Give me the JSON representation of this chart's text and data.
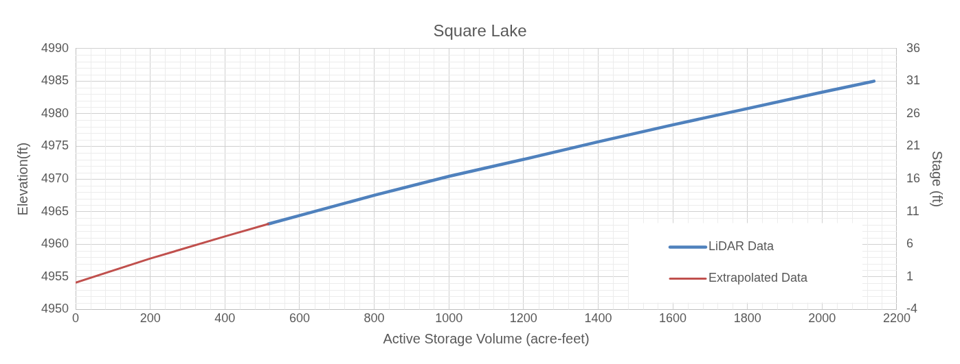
{
  "chart_data": {
    "type": "line",
    "title": "Square Lake",
    "xlabel": "Active Storage Volume (acre-feet)",
    "ylabel": "Elevation(ft)",
    "y2label": "Stage (ft)",
    "series": [
      {
        "name": "LiDAR Data",
        "color": "#4f81bd",
        "x": [
          516,
          600,
          800,
          1000,
          1200,
          1400,
          1600,
          1800,
          2000,
          2139
        ],
        "values": [
          4963.1,
          4964.4,
          4967.5,
          4970.4,
          4973,
          4975.7,
          4978.3,
          4980.8,
          4983.3,
          4985
        ]
      },
      {
        "name": "Extrapolated Data",
        "color": "#c0504d",
        "x": [
          0,
          200,
          400,
          516
        ],
        "values": [
          4954.1,
          4957.8,
          4961.2,
          4963.1
        ]
      }
    ],
    "xlim": [
      0,
      2200
    ],
    "xticks": [
      0,
      200,
      400,
      600,
      800,
      1000,
      1200,
      1400,
      1600,
      1800,
      2000,
      2200
    ],
    "ylim": [
      4950,
      4990
    ],
    "yticks": [
      4950,
      4955,
      4960,
      4965,
      4970,
      4975,
      4980,
      4985,
      4990
    ],
    "y2lim": [
      -4,
      36
    ],
    "y2ticks": [
      -4,
      1,
      6,
      11,
      16,
      21,
      26,
      31,
      36
    ],
    "grid": true,
    "legend": "bottom right",
    "marker": "none",
    "line_style": "solid"
  }
}
